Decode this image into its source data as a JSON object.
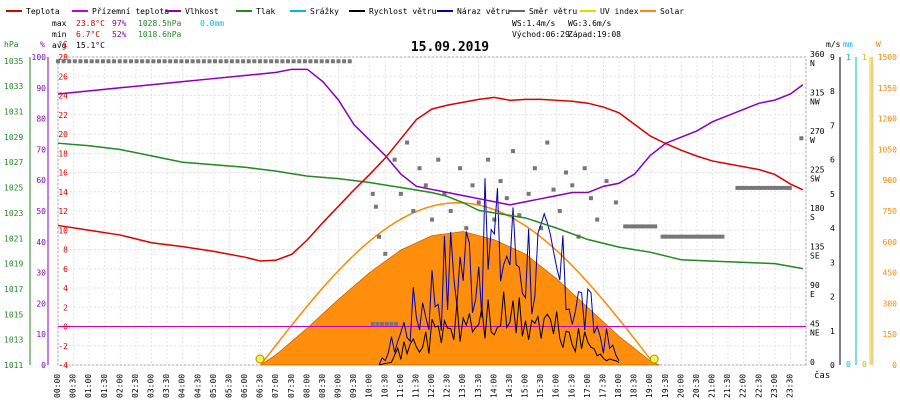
{
  "chart_data": {
    "type": "line",
    "title": "15.09.2019",
    "x_unit_label": "čas",
    "legend": [
      {
        "label": "Teplota",
        "color": "#dd0000"
      },
      {
        "label": "Přízemní teplota",
        "color": "#cc00cc"
      },
      {
        "label": "Vlhkost",
        "color": "#8800bb"
      },
      {
        "label": "Tlak",
        "color": "#228822"
      },
      {
        "label": "Srážky",
        "color": "#00bbdd"
      },
      {
        "label": "Rychlost větru",
        "color": "#000000"
      },
      {
        "label": "Náraz větru",
        "color": "#0000aa"
      },
      {
        "label": "Směr větru",
        "color": "#666666"
      },
      {
        "label": "UV index",
        "color": "#dddd00"
      },
      {
        "label": "Solar",
        "color": "#ff8800"
      }
    ],
    "stats": {
      "max": {
        "label": "max",
        "temp": "23.8°C",
        "hum": "97%",
        "press": "1028.5hPa",
        "rain": "0.0mm"
      },
      "min": {
        "label": "min",
        "temp": "6.7°C",
        "hum": "52%",
        "press": "1018.6hPa"
      },
      "avg": {
        "label": "avg",
        "temp": "15.1°C"
      }
    },
    "wind_info": {
      "ws": "WS:1.4m/s",
      "wg": "WG:3.6m/s",
      "sunrise": "Východ:06:29",
      "sunset": "Západ:19:08"
    },
    "x_ticks": [
      "00:00",
      "00:30",
      "01:00",
      "01:30",
      "02:00",
      "02:30",
      "03:00",
      "03:30",
      "04:00",
      "04:30",
      "05:00",
      "05:30",
      "06:00",
      "06:30",
      "07:00",
      "07:30",
      "08:00",
      "08:30",
      "09:00",
      "09:30",
      "10:00",
      "10:30",
      "11:00",
      "11:30",
      "12:00",
      "12:30",
      "13:00",
      "13:30",
      "14:00",
      "14:30",
      "15:00",
      "15:30",
      "16:00",
      "16:30",
      "17:00",
      "17:30",
      "18:00",
      "18:30",
      "19:00",
      "19:30",
      "20:00",
      "20:30",
      "21:00",
      "21:30",
      "22:00",
      "22:30",
      "23:00",
      "23:30"
    ],
    "axes": {
      "pressure": {
        "unit": "hPa",
        "ticks": [
          "1035",
          "1033",
          "1031",
          "1029",
          "1027",
          "1025",
          "1023",
          "1021",
          "1019",
          "1017",
          "1015",
          "1013",
          "1011"
        ],
        "range": [
          1011,
          1035.3
        ]
      },
      "humidity": {
        "unit": "%",
        "ticks": [
          "100",
          "90",
          "80",
          "70",
          "60",
          "50",
          "40",
          "30",
          "20",
          "10",
          "0"
        ],
        "range": [
          0,
          100
        ]
      },
      "temperature": {
        "unit": "°C",
        "ticks": [
          "28",
          "26",
          "24",
          "22",
          "20",
          "18",
          "16",
          "14",
          "12",
          "10",
          "8",
          "6",
          "4",
          "2",
          "0",
          "-2",
          "-4"
        ],
        "range": [
          -4,
          28
        ]
      },
      "direction": {
        "ticks": [
          {
            "deg": "360",
            "c": "N"
          },
          {
            "deg": "315",
            "c": "NW"
          },
          {
            "deg": "270",
            "c": "W"
          },
          {
            "deg": "225",
            "c": "SW"
          },
          {
            "deg": "180",
            "c": "S"
          },
          {
            "deg": "135",
            "c": "SE"
          },
          {
            "deg": "90",
            "c": "E"
          },
          {
            "deg": "45",
            "c": "NE"
          },
          {
            "deg": "0",
            "c": ""
          }
        ],
        "range": [
          0,
          360
        ]
      },
      "wind": {
        "unit": "m/s",
        "ticks": [
          "9",
          "8",
          "7",
          "6",
          "5",
          "4",
          "3",
          "2",
          "1",
          "0"
        ],
        "range": [
          0,
          9
        ]
      },
      "rain": {
        "unit": "mm",
        "ticks": [
          "1",
          "0"
        ]
      },
      "uv": {
        "ticks": [
          "1",
          "0"
        ]
      },
      "solar": {
        "unit": "W",
        "ticks": [
          "1500",
          "1350",
          "1200",
          "1050",
          "900",
          "750",
          "600",
          "450",
          "300",
          "150",
          "0"
        ],
        "range": [
          0,
          1500
        ]
      }
    },
    "series": [
      {
        "name": "Teplota",
        "unit": "°C",
        "x": [
          0,
          1,
          2,
          3,
          4,
          5,
          6,
          6.5,
          7,
          7.5,
          8,
          8.5,
          9,
          9.5,
          10,
          10.5,
          11,
          11.5,
          12,
          12.5,
          13,
          13.5,
          14,
          14.5,
          15,
          15.5,
          16,
          16.5,
          17,
          17.5,
          18,
          18.5,
          19,
          19.5,
          20,
          20.5,
          21,
          21.5,
          22,
          22.5,
          23,
          23.5,
          23.9
        ],
        "y": [
          10.5,
          10,
          9.5,
          8.7,
          8.3,
          7.8,
          7.2,
          6.8,
          6.9,
          7.5,
          9,
          10.8,
          12.5,
          14.2,
          15.8,
          17.5,
          19.5,
          21.5,
          22.6,
          23,
          23.3,
          23.6,
          23.8,
          23.5,
          23.6,
          23.6,
          23.5,
          23.4,
          23.2,
          22.8,
          22.2,
          21,
          19.8,
          19,
          18.3,
          17.7,
          17.2,
          16.9,
          16.6,
          16.3,
          15.8,
          14.8,
          14.2
        ]
      },
      {
        "name": "Vlhkost",
        "unit": "%",
        "x": [
          0,
          1,
          2,
          3,
          4,
          5,
          6,
          7,
          7.5,
          8,
          8.5,
          9,
          9.5,
          10,
          10.5,
          11,
          11.5,
          12,
          12.5,
          13,
          13.5,
          14,
          14.5,
          15,
          15.5,
          16,
          16.5,
          17,
          17.5,
          18,
          18.5,
          19,
          19.5,
          20,
          20.5,
          21,
          21.5,
          22,
          22.5,
          23,
          23.5,
          23.9
        ],
        "y": [
          88,
          89,
          90,
          91,
          92,
          93,
          94,
          95,
          96,
          96,
          92,
          86,
          78,
          73,
          68,
          62,
          58,
          57,
          56,
          55,
          54,
          53,
          52,
          53,
          54,
          55,
          56,
          56,
          58,
          59,
          62,
          68,
          72,
          74,
          76,
          79,
          81,
          83,
          85,
          86,
          88,
          91
        ]
      },
      {
        "name": "Tlak",
        "unit": "hPa",
        "x": [
          0,
          1,
          2,
          3,
          4,
          5,
          6,
          7,
          8,
          9,
          10,
          11,
          12,
          12.5,
          13,
          13.5,
          14,
          15,
          16,
          17,
          18,
          19,
          20,
          21,
          22,
          23,
          23.9
        ],
        "y": [
          1028.5,
          1028.3,
          1028,
          1027.5,
          1027,
          1026.8,
          1026.6,
          1026.3,
          1025.9,
          1025.7,
          1025.4,
          1025,
          1024.6,
          1024.3,
          1023.8,
          1023.2,
          1023,
          1022.6,
          1021.8,
          1020.9,
          1020.3,
          1019.9,
          1019.3,
          1019.2,
          1019.1,
          1019,
          1018.6
        ]
      },
      {
        "name": "Solar",
        "unit": "W",
        "x": [
          6.5,
          7,
          8,
          9,
          10,
          11,
          12,
          13,
          14,
          15,
          16,
          17,
          18,
          19,
          19.3
        ],
        "y": [
          0,
          50,
          180,
          320,
          450,
          560,
          630,
          650,
          610,
          540,
          420,
          280,
          140,
          20,
          0
        ]
      }
    ]
  }
}
